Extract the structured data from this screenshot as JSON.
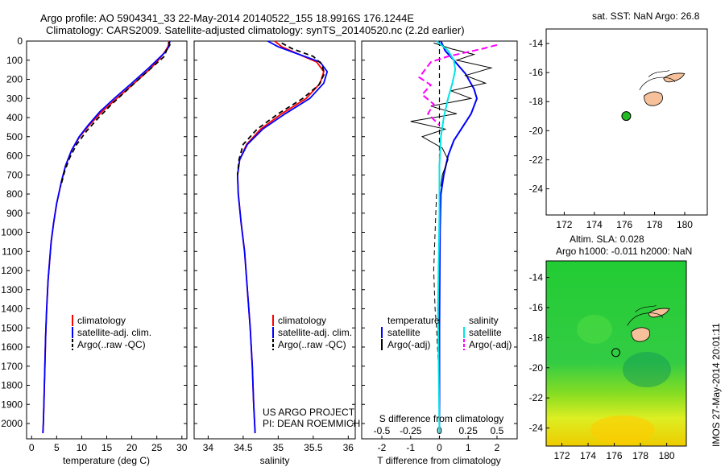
{
  "titles": {
    "line1": "Argo profile: AO 5904341_33 22-May-2014 20140522_155 18.9916S 176.1244E",
    "line2": "Climatology: CARS2009. Satellite-adjusted climatology: synTS_20140520.nc (2.2d earlier)",
    "sst": "sat. SST: NaN Argo: 26.8",
    "sla1": "Altim. SLA: 0.028",
    "sla2": "Argo h1000: -0.011 h2000: NaN"
  },
  "side_stamp": "IMOS 27-May-2014 20:01:11",
  "project_note": {
    "line1": "US ARGO PROJECT",
    "line2": "PI: DEAN ROEMMICH"
  },
  "colors": {
    "climatology": "#ff0000",
    "satellite": "#0000ff",
    "argo": "#000000",
    "sal_sat": "#00e5e5",
    "sal_argo": "#ff00ff",
    "land": "#f5c09a",
    "float": "#22bb22"
  },
  "chart_data": [
    {
      "id": "temperature",
      "type": "line",
      "xlabel": "temperature (deg C)",
      "ylabel": "",
      "xlim": [
        -1,
        31
      ],
      "ylim": [
        2080,
        0
      ],
      "xticks": [
        0,
        5,
        10,
        15,
        20,
        25,
        30
      ],
      "yticks": [
        0,
        100,
        200,
        300,
        400,
        500,
        600,
        700,
        800,
        900,
        1000,
        1100,
        1200,
        1300,
        1400,
        1500,
        1600,
        1700,
        1800,
        1900,
        2000
      ],
      "legend": [
        "climatology",
        "satellite-adj. clim.",
        "Argo(..raw -QC)"
      ],
      "series": [
        {
          "name": "climatology",
          "color": "#ff0000",
          "dash": "",
          "x": [
            27.5,
            27.2,
            26.5,
            25.3,
            23.5,
            20.5,
            17.0,
            14.0,
            11.5,
            9.6,
            8.0,
            6.8,
            6.0,
            5.0,
            4.4,
            3.9,
            3.6,
            3.3,
            3.0,
            2.8,
            2.65,
            2.55,
            2.45,
            2.35,
            2.25
          ],
          "y": [
            0,
            30,
            60,
            100,
            150,
            220,
            300,
            370,
            440,
            500,
            570,
            650,
            730,
            850,
            950,
            1050,
            1150,
            1250,
            1400,
            1550,
            1700,
            1800,
            1900,
            2000,
            2050
          ]
        },
        {
          "name": "satellite-adj. clim.",
          "color": "#0000ff",
          "dash": "",
          "x": [
            27.6,
            27.4,
            26.6,
            25.0,
            23.0,
            20.0,
            16.5,
            13.6,
            11.3,
            9.5,
            8.0,
            6.8,
            6.0,
            5.0,
            4.4,
            3.9,
            3.6,
            3.3,
            3.0,
            2.8,
            2.65,
            2.55,
            2.45,
            2.35,
            2.25
          ],
          "y": [
            0,
            30,
            60,
            100,
            150,
            220,
            300,
            370,
            440,
            500,
            570,
            650,
            730,
            850,
            950,
            1050,
            1150,
            1250,
            1400,
            1550,
            1700,
            1800,
            1900,
            2000,
            2050
          ]
        },
        {
          "name": "Argo(..raw -QC)",
          "color": "#000000",
          "dash": "6,4",
          "x": [
            27.3,
            27.6,
            26.9,
            26.5,
            24.8,
            22.2,
            19.3,
            16.0,
            13.4,
            11.0,
            9.0,
            7.6,
            6.6,
            5.8
          ],
          "y": [
            5,
            20,
            50,
            80,
            120,
            180,
            250,
            330,
            400,
            470,
            540,
            610,
            680,
            760
          ]
        }
      ]
    },
    {
      "id": "salinity",
      "type": "line",
      "xlabel": "salinity",
      "ylabel": "",
      "xlim": [
        33.8,
        36.1
      ],
      "ylim": [
        2080,
        0
      ],
      "xticks": [
        34,
        34.5,
        35,
        35.5,
        36
      ],
      "legend": [
        "climatology",
        "satellite-adj. clim.",
        "Argo(..raw -QC)"
      ],
      "series": [
        {
          "name": "climatology",
          "color": "#ff0000",
          "dash": "",
          "x": [
            34.95,
            35.05,
            35.3,
            35.55,
            35.65,
            35.6,
            35.4,
            35.05,
            34.75,
            34.55,
            34.45,
            34.42,
            34.43,
            34.47,
            34.52,
            34.56,
            34.6,
            34.63,
            34.65,
            34.67
          ],
          "y": [
            0,
            30,
            70,
            110,
            160,
            220,
            300,
            380,
            460,
            540,
            620,
            700,
            800,
            950,
            1100,
            1300,
            1500,
            1700,
            1900,
            2050
          ]
        },
        {
          "name": "satellite-adj. clim.",
          "color": "#0000ff",
          "dash": "",
          "x": [
            34.85,
            35.0,
            35.3,
            35.6,
            35.7,
            35.65,
            35.45,
            35.1,
            34.78,
            34.56,
            34.45,
            34.42,
            34.43,
            34.47,
            34.52,
            34.56,
            34.6,
            34.63,
            34.65,
            34.67
          ],
          "y": [
            0,
            30,
            70,
            110,
            160,
            220,
            300,
            380,
            460,
            540,
            620,
            700,
            800,
            950,
            1100,
            1300,
            1500,
            1700,
            1900,
            2050
          ]
        },
        {
          "name": "Argo(..raw -QC)",
          "color": "#000000",
          "dash": "6,4",
          "x": [
            35.05,
            35.2,
            35.5,
            35.62,
            35.66,
            35.58,
            35.35,
            35.0,
            34.7,
            34.5,
            34.44,
            34.42
          ],
          "y": [
            10,
            40,
            80,
            120,
            170,
            230,
            300,
            380,
            460,
            540,
            620,
            700
          ]
        }
      ]
    },
    {
      "id": "difference",
      "type": "line",
      "xlabel": "T difference from climatology",
      "top_label": "S difference from climatology",
      "xlim": [
        -2.7,
        2.7
      ],
      "ylim": [
        2080,
        0
      ],
      "xticks": [
        -2,
        -1,
        0,
        1,
        2
      ],
      "top_ticks": [
        -0.5,
        -0.25,
        0,
        0.25,
        0.5
      ],
      "top_tick_labels": [
        "-0.5",
        "-0.25",
        "0",
        "0.25",
        "0.5"
      ],
      "legend_titles": [
        "temperature",
        "salinity"
      ],
      "legend": [
        "satellite",
        "Argo(-adj)",
        "satellite",
        "Argo(-adj)"
      ],
      "series": [
        {
          "name": "T satellite",
          "color": "#0000ff",
          "dash": "",
          "width": 2,
          "x": [
            0.05,
            0.2,
            0.5,
            0.9,
            1.2,
            1.3,
            1.1,
            0.8,
            0.5,
            0.3,
            0.15,
            0.05,
            0.02,
            0.0,
            0.0
          ],
          "y": [
            0,
            50,
            100,
            170,
            250,
            300,
            380,
            450,
            520,
            600,
            700,
            800,
            1000,
            1500,
            2050
          ]
        },
        {
          "name": "T Argo(-adj)",
          "color": "#000000",
          "dash": "",
          "width": 1,
          "x": [
            -0.2,
            0.4,
            1.2,
            0.6,
            1.8,
            0.9,
            1.6,
            0.4,
            1.1,
            -0.3,
            0.6,
            -1.0,
            0.2,
            -0.6,
            0.1,
            0.3,
            0.1,
            0.05
          ],
          "y": [
            10,
            40,
            70,
            100,
            140,
            180,
            220,
            260,
            300,
            340,
            380,
            420,
            460,
            500,
            560,
            620,
            700,
            760
          ]
        },
        {
          "name": "T Argo dashed",
          "color": "#000000",
          "dash": "6,4",
          "width": 1,
          "x": [
            -0.1,
            -0.15,
            -0.2,
            -0.15,
            -0.1,
            -0.05,
            0.0
          ],
          "y": [
            800,
            1000,
            1200,
            1400,
            1500,
            1650,
            1800
          ]
        },
        {
          "name": "S satellite",
          "color": "#00e5e5",
          "dash": "",
          "width": 2,
          "x": [
            -0.1,
            0.3,
            0.5,
            0.55,
            0.45,
            0.3,
            0.15,
            0.05,
            0.0,
            0.0,
            -0.05,
            0.0
          ],
          "y": [
            0,
            50,
            100,
            150,
            220,
            300,
            400,
            500,
            650,
            900,
            1400,
            2050
          ]
        },
        {
          "name": "S Argo(-adj)",
          "color": "#ff00ff",
          "dash": "8,4",
          "width": 2,
          "x": [
            2.0,
            1.5,
            0.9,
            0.3,
            -0.3,
            -0.5,
            -0.7,
            -0.3,
            -0.6,
            -0.2,
            -0.4,
            0.0
          ],
          "y": [
            20,
            40,
            60,
            80,
            110,
            150,
            190,
            230,
            280,
            330,
            380,
            440
          ]
        }
      ]
    },
    {
      "id": "sst_map",
      "type": "scatter",
      "title": "sat. SST: NaN Argo: 26.8",
      "xlim": [
        170.8,
        181.5
      ],
      "ylim": [
        -25.8,
        -13
      ],
      "xticks": [
        172,
        174,
        176,
        178,
        180
      ],
      "yticks": [
        -14,
        -16,
        -18,
        -20,
        -22,
        -24
      ],
      "float_position": [
        176.12,
        -18.99
      ]
    },
    {
      "id": "sla_map",
      "type": "heatmap",
      "title": "Altim. SLA: 0.028",
      "subtitle": "Argo h1000: -0.011 h2000: NaN",
      "xlim": [
        170.8,
        181.5
      ],
      "ylim": [
        -25.2,
        -12.9
      ],
      "xticks": [
        172,
        174,
        176,
        178,
        180
      ],
      "yticks": [
        -14,
        -16,
        -18,
        -20,
        -22,
        -24
      ],
      "float_position": [
        176.12,
        -18.99
      ]
    }
  ]
}
